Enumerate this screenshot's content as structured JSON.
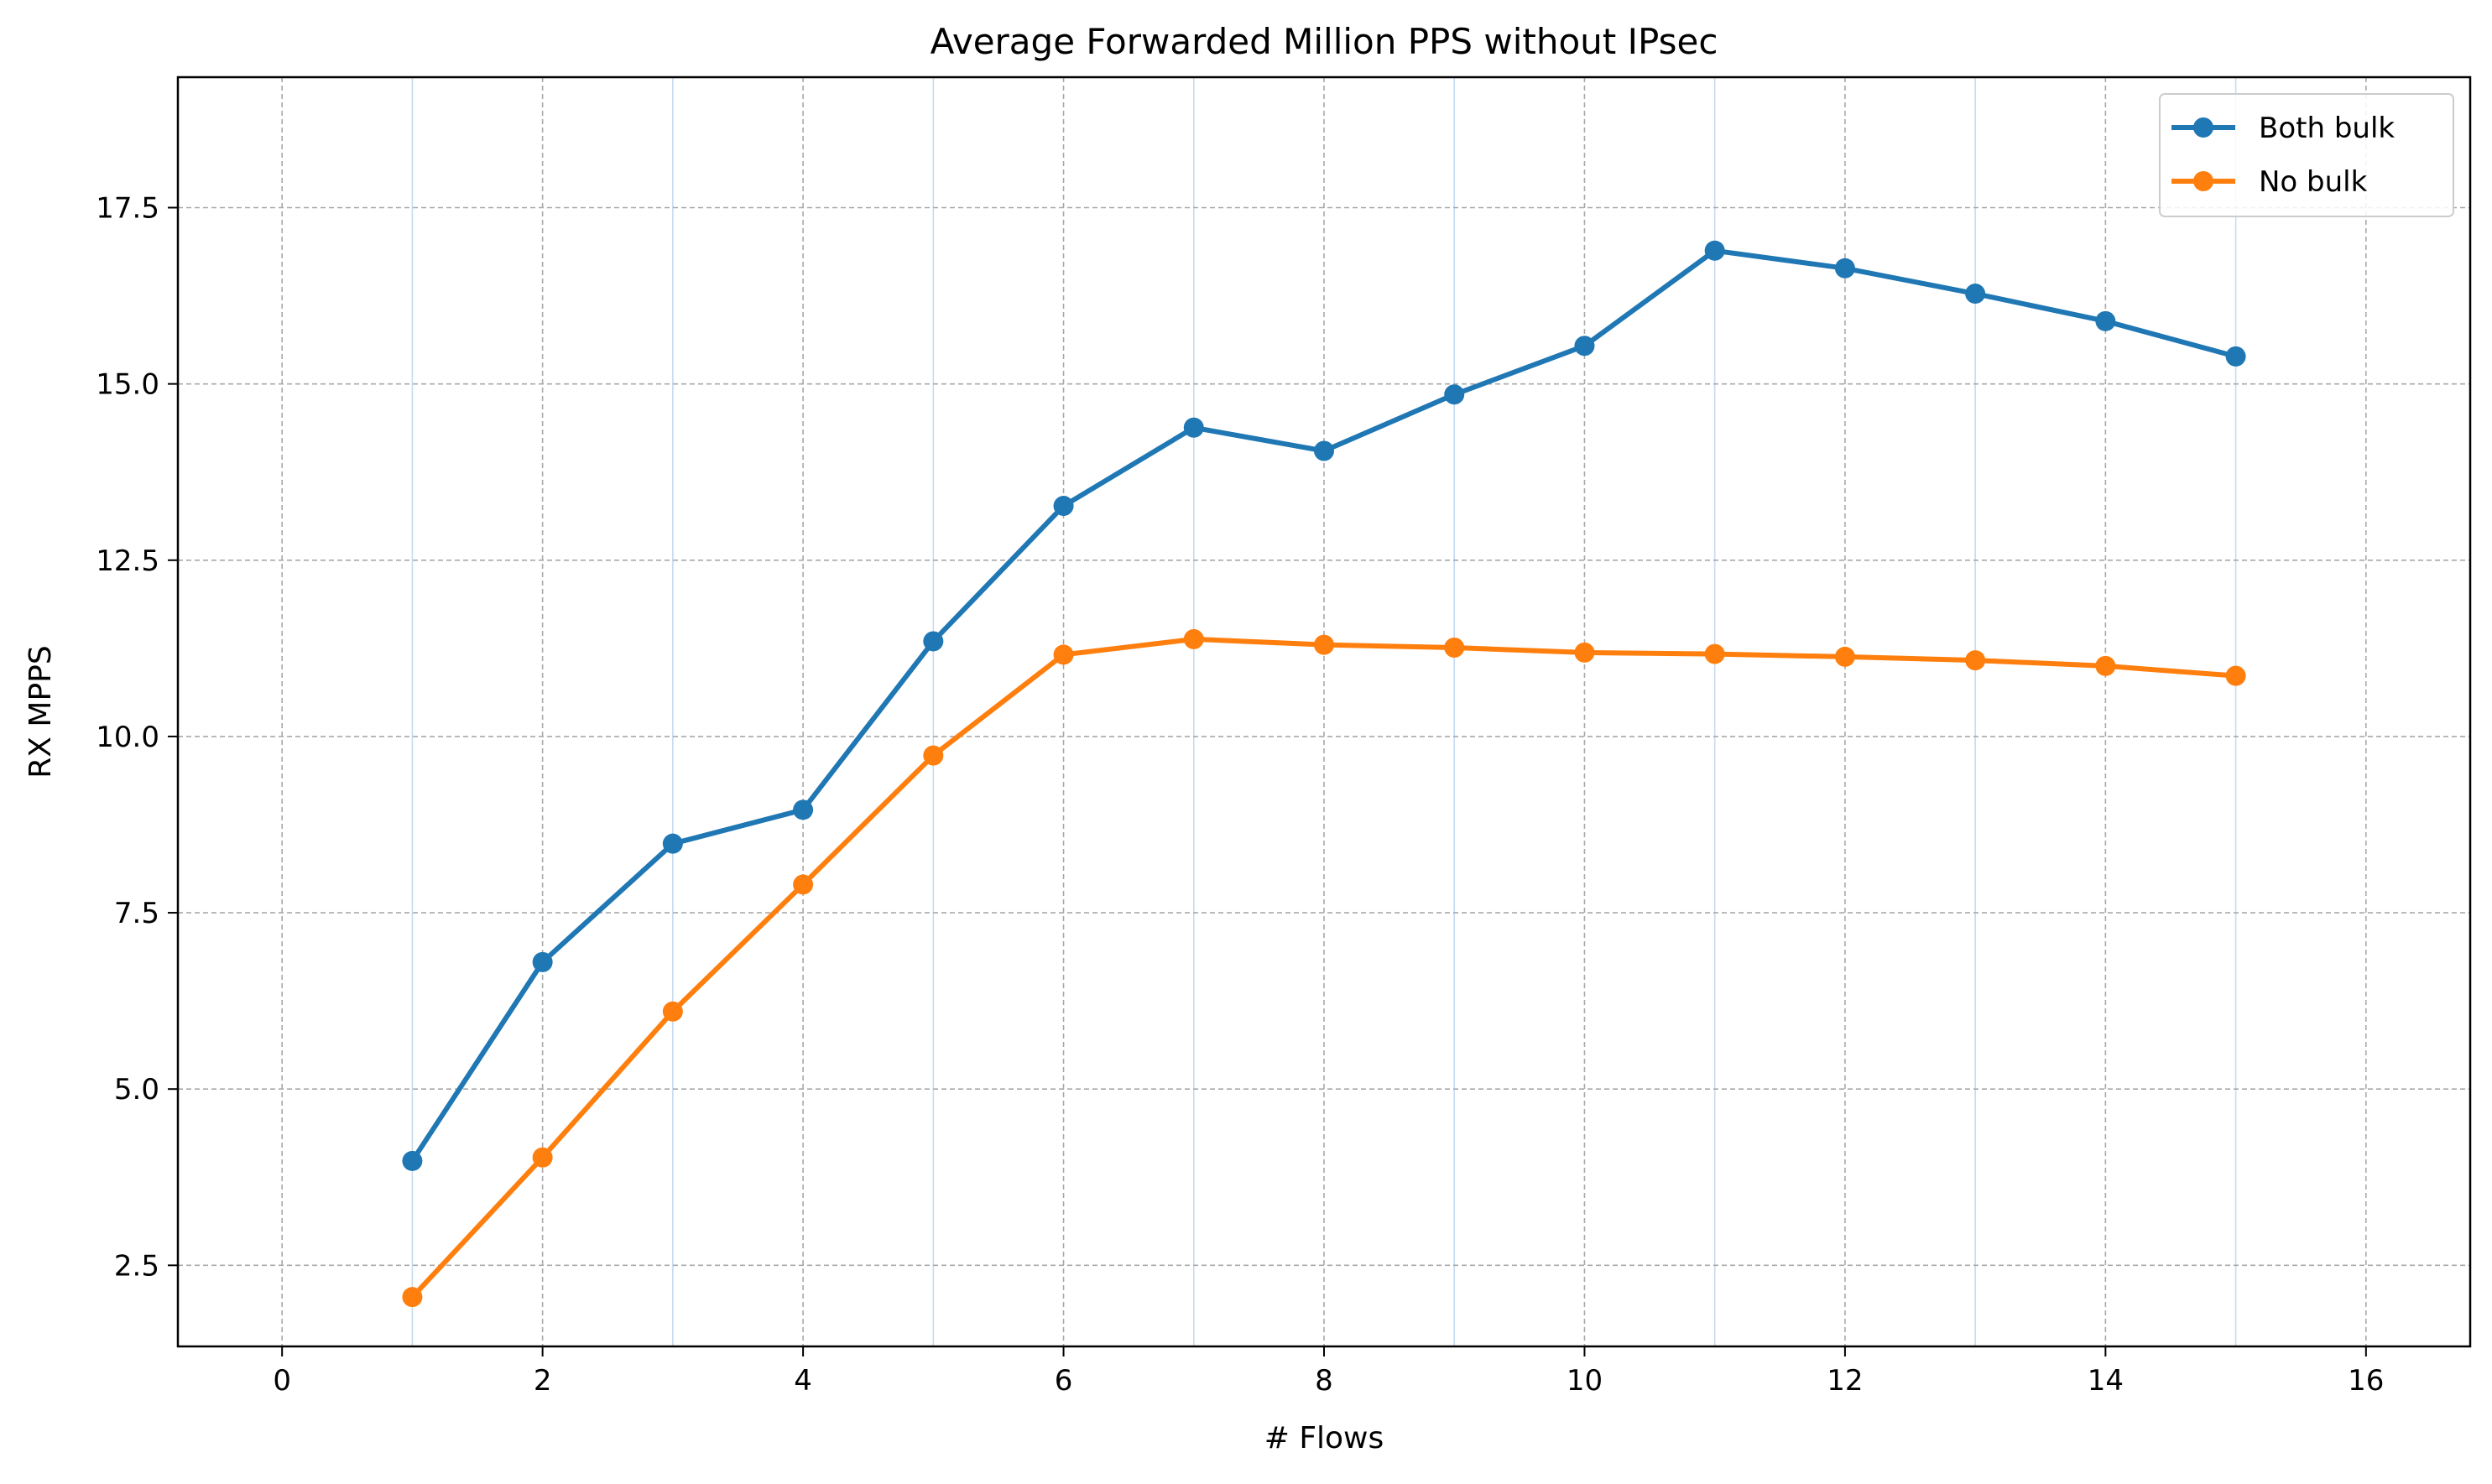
{
  "chart_data": {
    "type": "line",
    "title": "Average Forwarded Million PPS without IPsec",
    "xlabel": "# Flows",
    "ylabel": "RX MPPS",
    "xlim": [
      -0.8,
      16.8
    ],
    "ylim": [
      1.35,
      19.35
    ],
    "xticks": [
      0,
      2,
      4,
      6,
      8,
      10,
      12,
      14,
      16
    ],
    "xtick_labels": [
      "0",
      "2",
      "4",
      "6",
      "8",
      "10",
      "12",
      "14",
      "16"
    ],
    "yticks": [
      2.5,
      5.0,
      7.5,
      10.0,
      12.5,
      15.0,
      17.5
    ],
    "ytick_labels": [
      "2.5",
      "5.0",
      "7.5",
      "10.0",
      "12.5",
      "15.0",
      "17.5"
    ],
    "minor_x_gridlines": [
      1,
      3,
      5,
      7,
      9,
      11,
      13,
      15
    ],
    "grid": true,
    "legend_position": "top-right",
    "x": [
      1,
      2,
      3,
      4,
      5,
      6,
      7,
      8,
      9,
      10,
      11,
      12,
      13,
      14,
      15
    ],
    "series": [
      {
        "name": "Both bulk",
        "color": "#1f77b4",
        "values": [
          3.98,
          6.8,
          8.48,
          8.96,
          11.35,
          13.27,
          14.38,
          14.05,
          14.85,
          15.54,
          16.89,
          16.64,
          16.28,
          15.89,
          15.39
        ]
      },
      {
        "name": "No bulk",
        "color": "#ff7f0e",
        "values": [
          2.05,
          4.03,
          6.1,
          7.9,
          9.73,
          11.16,
          11.38,
          11.3,
          11.26,
          11.19,
          11.17,
          11.13,
          11.08,
          11.0,
          10.86
        ]
      }
    ]
  }
}
